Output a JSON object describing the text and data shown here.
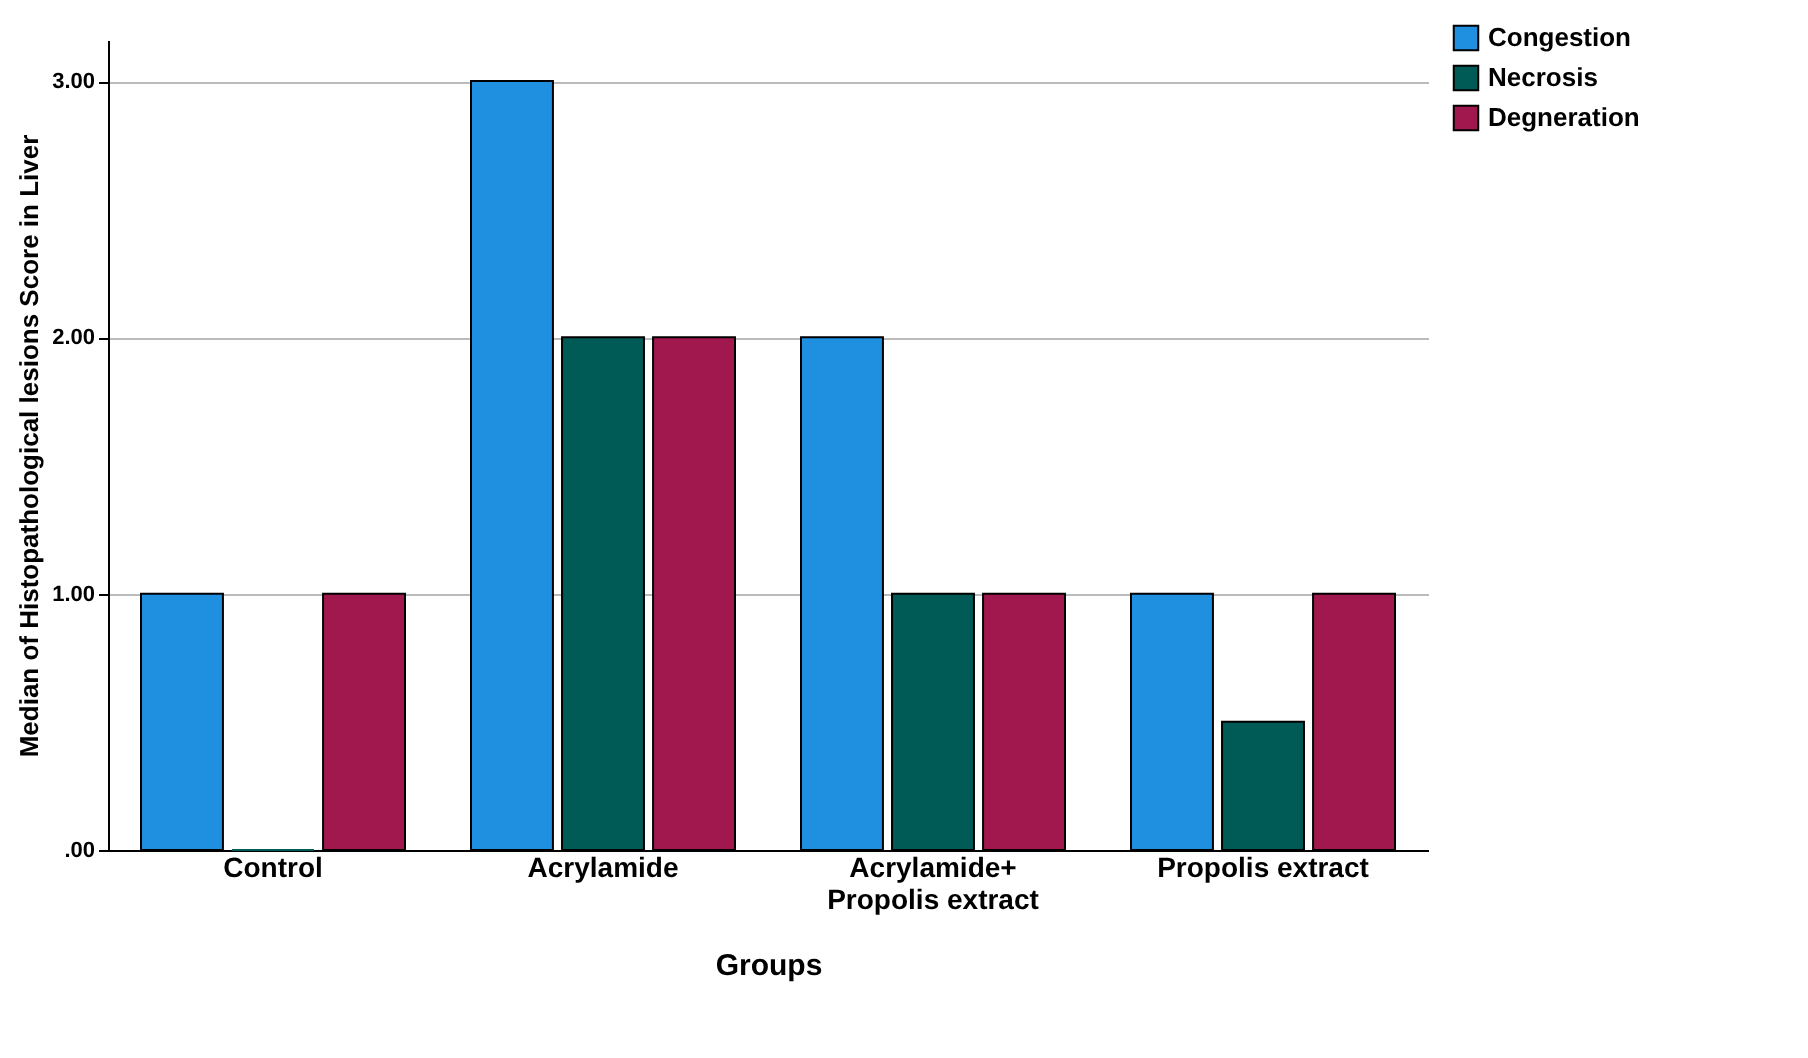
{
  "chart_data": {
    "type": "bar",
    "xlabel": "Groups",
    "ylabel": "Median of Histopathological lesions Score in Liver",
    "categories": [
      "Control",
      "Acrylamide",
      "Acrylamide+ Propolis extract",
      "Propolis extract"
    ],
    "series": [
      {
        "name": "Congestion",
        "color": "#1f8fe0",
        "values": [
          1,
          3,
          2,
          1
        ]
      },
      {
        "name": "Necrosis",
        "color": "#005a55",
        "values": [
          0,
          2,
          1,
          0.5
        ]
      },
      {
        "name": "Degneration",
        "color": "#a0184e",
        "values": [
          1,
          2,
          1,
          1
        ]
      }
    ],
    "ylim": [
      0,
      3.16
    ],
    "yticks": [
      {
        "value": 0,
        "label": ".00"
      },
      {
        "value": 1,
        "label": "1.00"
      },
      {
        "value": 2,
        "label": "2.00"
      },
      {
        "value": 3,
        "label": "3.00"
      }
    ],
    "grid": "y",
    "legend": "top right"
  }
}
